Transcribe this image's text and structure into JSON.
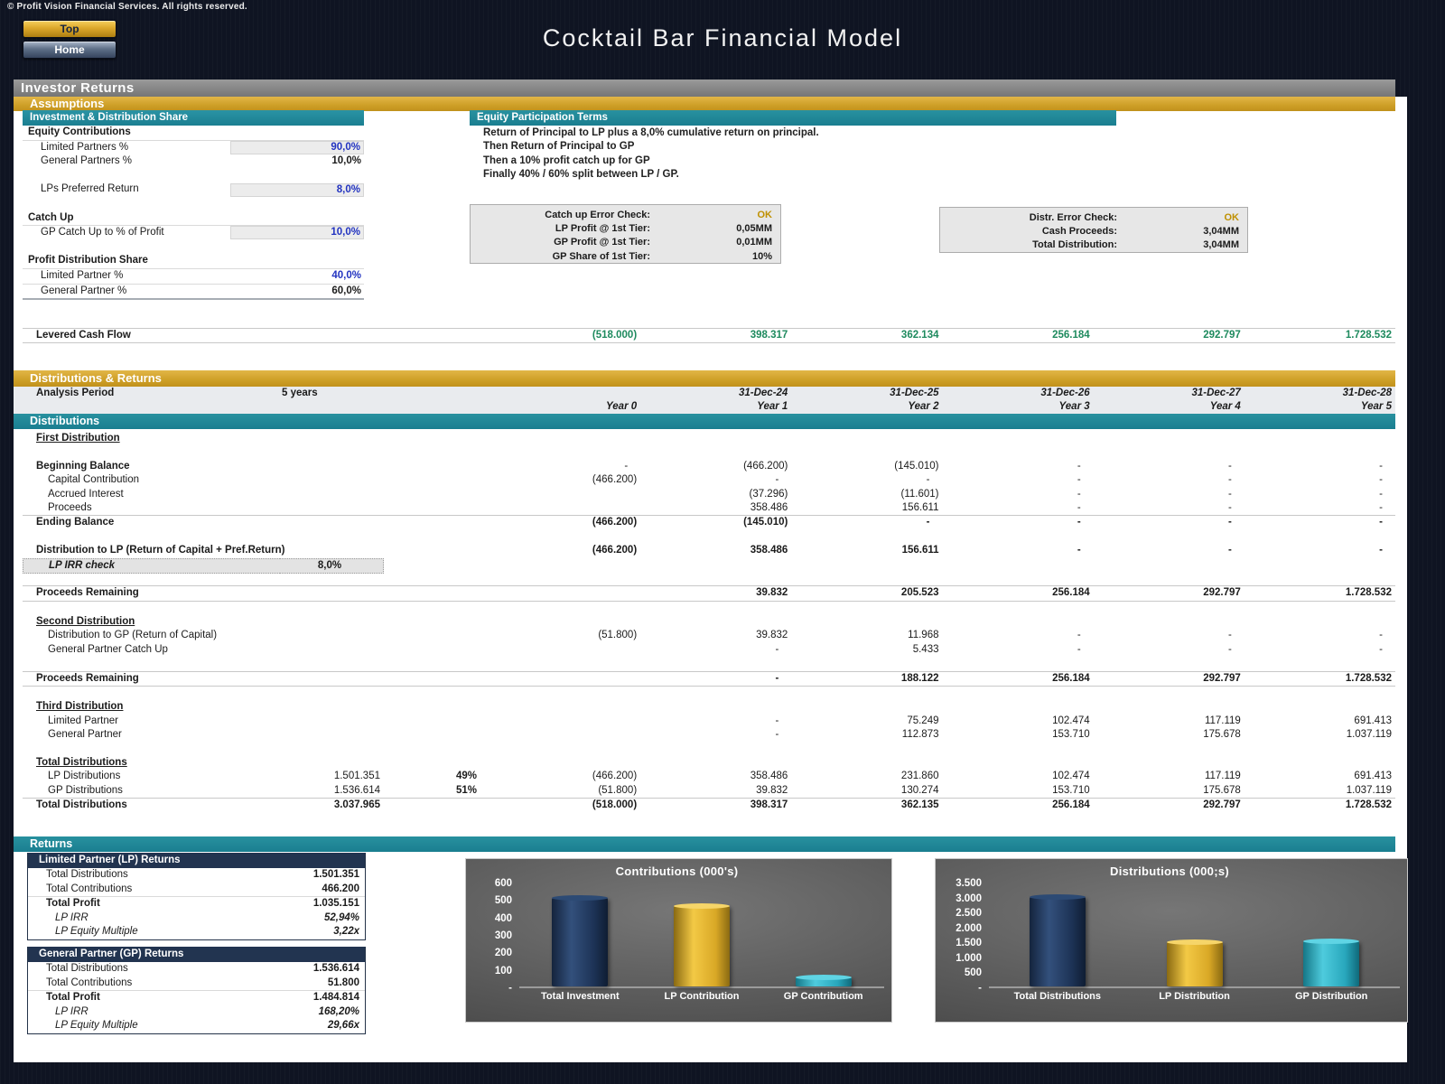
{
  "page": {
    "copyright": "© Profit Vision Financial Services. All rights reserved.",
    "title": "Cocktail Bar Financial Model"
  },
  "nav": {
    "top_label": "Top",
    "home_label": "Home"
  },
  "colors": {
    "background_navy": "#0F1422",
    "section_teal": "#1F8697",
    "section_gold": "#D4A72E",
    "section_gray": "#7E7E7E",
    "returns_navy": "#223450",
    "input_blue": "#2233C0",
    "cash_green": "#1E8A5E",
    "ok_gold": "#BF9000",
    "bar_navy": "#1D3356",
    "bar_gold": "#E4B52E",
    "bar_teal": "#2FAFC4"
  },
  "bars": {
    "investor_returns": "Investor Returns",
    "assumptions": "Assumptions",
    "distributions_returns": "Distributions & Returns",
    "distributions": "Distributions",
    "returns": "Returns"
  },
  "assumptions": {
    "header": "Investment & Distribution Share",
    "rows": [
      {
        "l": "Equity Contributions",
        "s": "bold rule"
      },
      {
        "l": "Limited Partners %",
        "v": "90,0%",
        "s": "ind input blue"
      },
      {
        "l": "General Partners %",
        "v": "10,0%",
        "s": "ind"
      },
      {
        "s": "spacer"
      },
      {
        "l": "LPs Preferred Return",
        "v": "8,0%",
        "s": "ind input blue"
      },
      {
        "s": "spacer"
      },
      {
        "l": "Catch Up",
        "s": "bold rule"
      },
      {
        "l": "GP Catch Up to % of Profit",
        "v": "10,0%",
        "s": "ind input blue"
      },
      {
        "s": "spacer"
      },
      {
        "l": "Profit Distribution Share",
        "s": "bold rule"
      },
      {
        "l": "Limited Partner %",
        "v": "40,0%",
        "s": "ind blue rule"
      },
      {
        "l": "General Partner %",
        "v": "60,0%",
        "s": "ind last"
      }
    ]
  },
  "equity_terms": {
    "header": "Equity Participation Terms",
    "lines": [
      "Return of Principal to LP plus a 8,0% cumulative return on principal.",
      "Then Return of Principal to GP",
      "Then a 10% profit catch up for GP",
      "Finally 40% / 60% split between LP / GP."
    ]
  },
  "checks": {
    "catchup": {
      "rows": [
        {
          "l": "Catch up Error Check:",
          "v": "OK",
          "s": "ok"
        },
        {
          "l": "LP Profit @ 1st Tier:",
          "v": "0,05MM"
        },
        {
          "l": "GP Profit @ 1st Tier:",
          "v": "0,01MM"
        },
        {
          "l": "GP Share of 1st Tier:",
          "v": "10%"
        }
      ]
    },
    "distr": {
      "rows": [
        {
          "l": "Distr. Error Check:",
          "v": "OK",
          "s": "ok"
        },
        {
          "l": "Cash Proceeds:",
          "v": "3,04MM"
        },
        {
          "l": "Total Distribution:",
          "v": "3,04MM"
        }
      ]
    }
  },
  "levered": {
    "rows": [
      {
        "l": "Levered Cash Flow",
        "s": "bold vbold band green",
        "v": [
          "(518.000)",
          "398.317",
          "362.134",
          "256.184",
          "292.797",
          "1.728.532"
        ]
      }
    ]
  },
  "period": {
    "analysis_label": "Analysis Period",
    "analysis_value": "5 years",
    "dates": [
      "31-Dec-24",
      "31-Dec-25",
      "31-Dec-26",
      "31-Dec-27",
      "31-Dec-28"
    ],
    "years": [
      "Year 0",
      "Year 1",
      "Year 2",
      "Year 3",
      "Year 4",
      "Year 5"
    ]
  },
  "distributions": {
    "rows": [
      {
        "l": "First Distribution",
        "s": "bold u"
      },
      {
        "s": "spacer"
      },
      {
        "l": "Beginning Balance",
        "s": "bold",
        "v": [
          "-",
          "(466.200)",
          "(145.010)",
          "-",
          "-",
          "-"
        ]
      },
      {
        "l": "Capital Contribution",
        "s": "ind",
        "v": [
          "(466.200)",
          "-",
          "-",
          "-",
          "-",
          "-"
        ]
      },
      {
        "l": "Accrued Interest",
        "s": "ind",
        "v": [
          "",
          "(37.296)",
          "(11.601)",
          "-",
          "-",
          "-"
        ]
      },
      {
        "l": "Proceeds",
        "s": "ind",
        "v": [
          "",
          "358.486",
          "156.611",
          "-",
          "-",
          "-"
        ]
      },
      {
        "l": "Ending Balance",
        "s": "bold vbold top",
        "v": [
          "(466.200)",
          "(145.010)",
          "-",
          "-",
          "-",
          "-"
        ]
      },
      {
        "s": "spacer"
      },
      {
        "l": "Distribution to LP (Return of Capital + Pref.Return)",
        "s": "bold vbold",
        "v": [
          "(466.200)",
          "358.486",
          "156.611",
          "-",
          "-",
          "-"
        ]
      },
      {
        "l": "LP IRR check",
        "a": "8,0%",
        "s": "ital irr"
      },
      {
        "s": "spacer"
      },
      {
        "l": "Proceeds Remaining",
        "s": "bold vbold band",
        "v": [
          "",
          "39.832",
          "205.523",
          "256.184",
          "292.797",
          "1.728.532"
        ]
      },
      {
        "s": "spacer"
      },
      {
        "l": "Second Distribution",
        "s": "bold u"
      },
      {
        "l": "Distribution to GP (Return of Capital)",
        "s": "ind",
        "v": [
          "(51.800)",
          "39.832",
          "11.968",
          "-",
          "-",
          "-"
        ]
      },
      {
        "l": "General Partner Catch Up",
        "s": "ind",
        "v": [
          "",
          "-",
          "5.433",
          "-",
          "-",
          "-"
        ]
      },
      {
        "s": "spacer"
      },
      {
        "l": "Proceeds Remaining",
        "s": "bold vbold band",
        "v": [
          "",
          "-",
          "188.122",
          "256.184",
          "292.797",
          "1.728.532"
        ]
      },
      {
        "s": "spacer"
      },
      {
        "l": "Third Distribution",
        "s": "bold u"
      },
      {
        "l": "Limited Partner",
        "s": "ind",
        "v": [
          "",
          "-",
          "75.249",
          "102.474",
          "117.119",
          "691.413"
        ]
      },
      {
        "l": "General Partner",
        "s": "ind",
        "v": [
          "",
          "-",
          "112.873",
          "153.710",
          "175.678",
          "1.037.119"
        ]
      },
      {
        "s": "spacer"
      },
      {
        "l": "Total Distributions",
        "s": "bold u"
      },
      {
        "l": "LP Distributions",
        "s": "ind",
        "a": "1.501.351",
        "b": "49%",
        "v": [
          "(466.200)",
          "358.486",
          "231.860",
          "102.474",
          "117.119",
          "691.413"
        ]
      },
      {
        "l": "GP Distributions",
        "s": "ind",
        "a": "1.536.614",
        "b": "51%",
        "v": [
          "(51.800)",
          "39.832",
          "130.274",
          "153.710",
          "175.678",
          "1.037.119"
        ]
      },
      {
        "l": "Total Distributions",
        "s": "bold vbold top",
        "a": "3.037.965",
        "v": [
          "(518.000)",
          "398.317",
          "362.135",
          "256.184",
          "292.797",
          "1.728.532"
        ]
      }
    ]
  },
  "returns": {
    "lp": {
      "header": "Limited Partner (LP) Returns",
      "rows": [
        {
          "l": "Total Distributions",
          "v": "1.501.351",
          "s": "ind"
        },
        {
          "l": "Total Contributions",
          "v": "466.200",
          "s": "ind rule"
        },
        {
          "l": "Total Profit",
          "v": "1.035.151",
          "s": "ind bold"
        },
        {
          "l": "LP IRR",
          "v": "52,94%",
          "s": "ind2 ital"
        },
        {
          "l": "LP Equity Multiple",
          "v": "3,22x",
          "s": "ind2 ital"
        }
      ]
    },
    "gp": {
      "header": "General Partner (GP) Returns",
      "rows": [
        {
          "l": "Total Distributions",
          "v": "1.536.614",
          "s": "ind"
        },
        {
          "l": "Total Contributions",
          "v": "51.800",
          "s": "ind rule"
        },
        {
          "l": "Total Profit",
          "v": "1.484.814",
          "s": "ind bold"
        },
        {
          "l": "LP IRR",
          "v": "168,20%",
          "s": "ind2 ital"
        },
        {
          "l": "LP Equity Multiple",
          "v": "29,66x",
          "s": "ind2 ital"
        }
      ]
    }
  },
  "chart_data": [
    {
      "type": "bar",
      "title": "Contributions (000's)",
      "categories": [
        "Total Investment",
        "LP Contribution",
        "GP Contributiom"
      ],
      "values": [
        518,
        466,
        52
      ],
      "bar_colors": [
        "navy",
        "gold",
        "teal"
      ],
      "ylim": [
        0,
        600
      ],
      "yticks": [
        "600",
        "500",
        "400",
        "300",
        "200",
        "100",
        "-"
      ],
      "xlabel": "",
      "ylabel": "",
      "grid": false,
      "legend": "none"
    },
    {
      "type": "bar",
      "title": "Distributions (000;s)",
      "categories": [
        "Total Distributions",
        "LP Distribution",
        "GP Distribution"
      ],
      "values": [
        3038,
        1501,
        1537
      ],
      "bar_colors": [
        "navy",
        "gold",
        "teal"
      ],
      "ylim": [
        0,
        3500
      ],
      "yticks": [
        "3.500",
        "3.000",
        "2.500",
        "2.000",
        "1.500",
        "1.000",
        "500",
        "-"
      ],
      "xlabel": "",
      "ylabel": "",
      "grid": false,
      "legend": "none"
    }
  ]
}
